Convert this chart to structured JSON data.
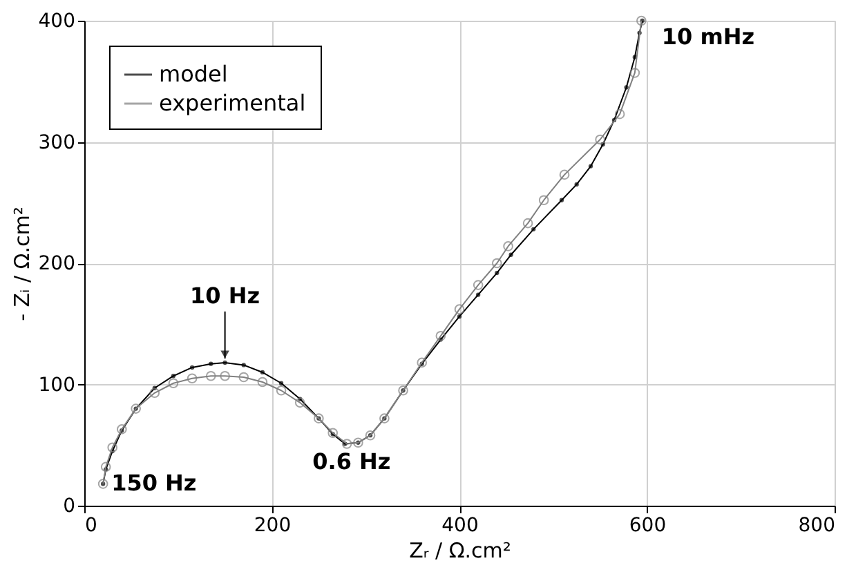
{
  "chart_data": {
    "type": "line",
    "xlabel": "Zᵣ / Ω.cm²",
    "ylabel": "- Zᵢ / Ω.cm²",
    "xlim": [
      0,
      800
    ],
    "xticks": [
      0,
      200,
      400,
      600,
      800
    ],
    "ylim": [
      0,
      400
    ],
    "yticks": [
      0,
      100,
      200,
      300,
      400
    ],
    "grid": true,
    "legend": "top left",
    "marker": "circle",
    "line_style": "solid",
    "series": [
      {
        "name": "model",
        "color": "#000000",
        "x": [
          20,
          23,
          30,
          40,
          55,
          75,
          95,
          115,
          135,
          150,
          170,
          190,
          210,
          230,
          250,
          265,
          278,
          292,
          305,
          320,
          340,
          360,
          380,
          400,
          420,
          440,
          455,
          479,
          509,
          525,
          540,
          553,
          565,
          578,
          587,
          592,
          595
        ],
        "values": [
          18,
          30,
          45,
          62,
          80,
          97,
          107,
          114,
          117,
          118,
          116,
          110,
          101,
          88,
          72,
          59,
          51,
          52,
          58,
          72,
          95,
          117,
          137,
          156,
          174,
          192,
          207,
          228,
          252,
          265,
          280,
          298,
          318,
          345,
          370,
          390,
          400
        ]
      },
      {
        "name": "experimental",
        "color": "#808080",
        "x": [
          20,
          23,
          30,
          40,
          55,
          75,
          95,
          115,
          135,
          150,
          170,
          190,
          210,
          230,
          250,
          265,
          280,
          292,
          305,
          320,
          340,
          360,
          380,
          400,
          420,
          440,
          452,
          473,
          490,
          512,
          550,
          571,
          587,
          594
        ],
        "values": [
          18,
          32,
          48,
          63,
          80,
          93,
          101,
          105,
          107,
          107,
          106,
          102,
          95,
          85,
          72,
          60,
          51,
          52,
          58,
          72,
          95,
          118,
          140,
          162,
          182,
          200,
          214,
          233,
          252,
          273,
          302,
          323,
          357,
          400
        ]
      }
    ],
    "annotations": [
      {
        "text": "10 Hz",
        "x": 150,
        "y": 118
      },
      {
        "text": "150 Hz",
        "x": 20,
        "y": 18
      },
      {
        "text": "0.6 Hz",
        "x": 285,
        "y": 52
      },
      {
        "text": "10 mHz",
        "x": 595,
        "y": 400
      }
    ]
  }
}
